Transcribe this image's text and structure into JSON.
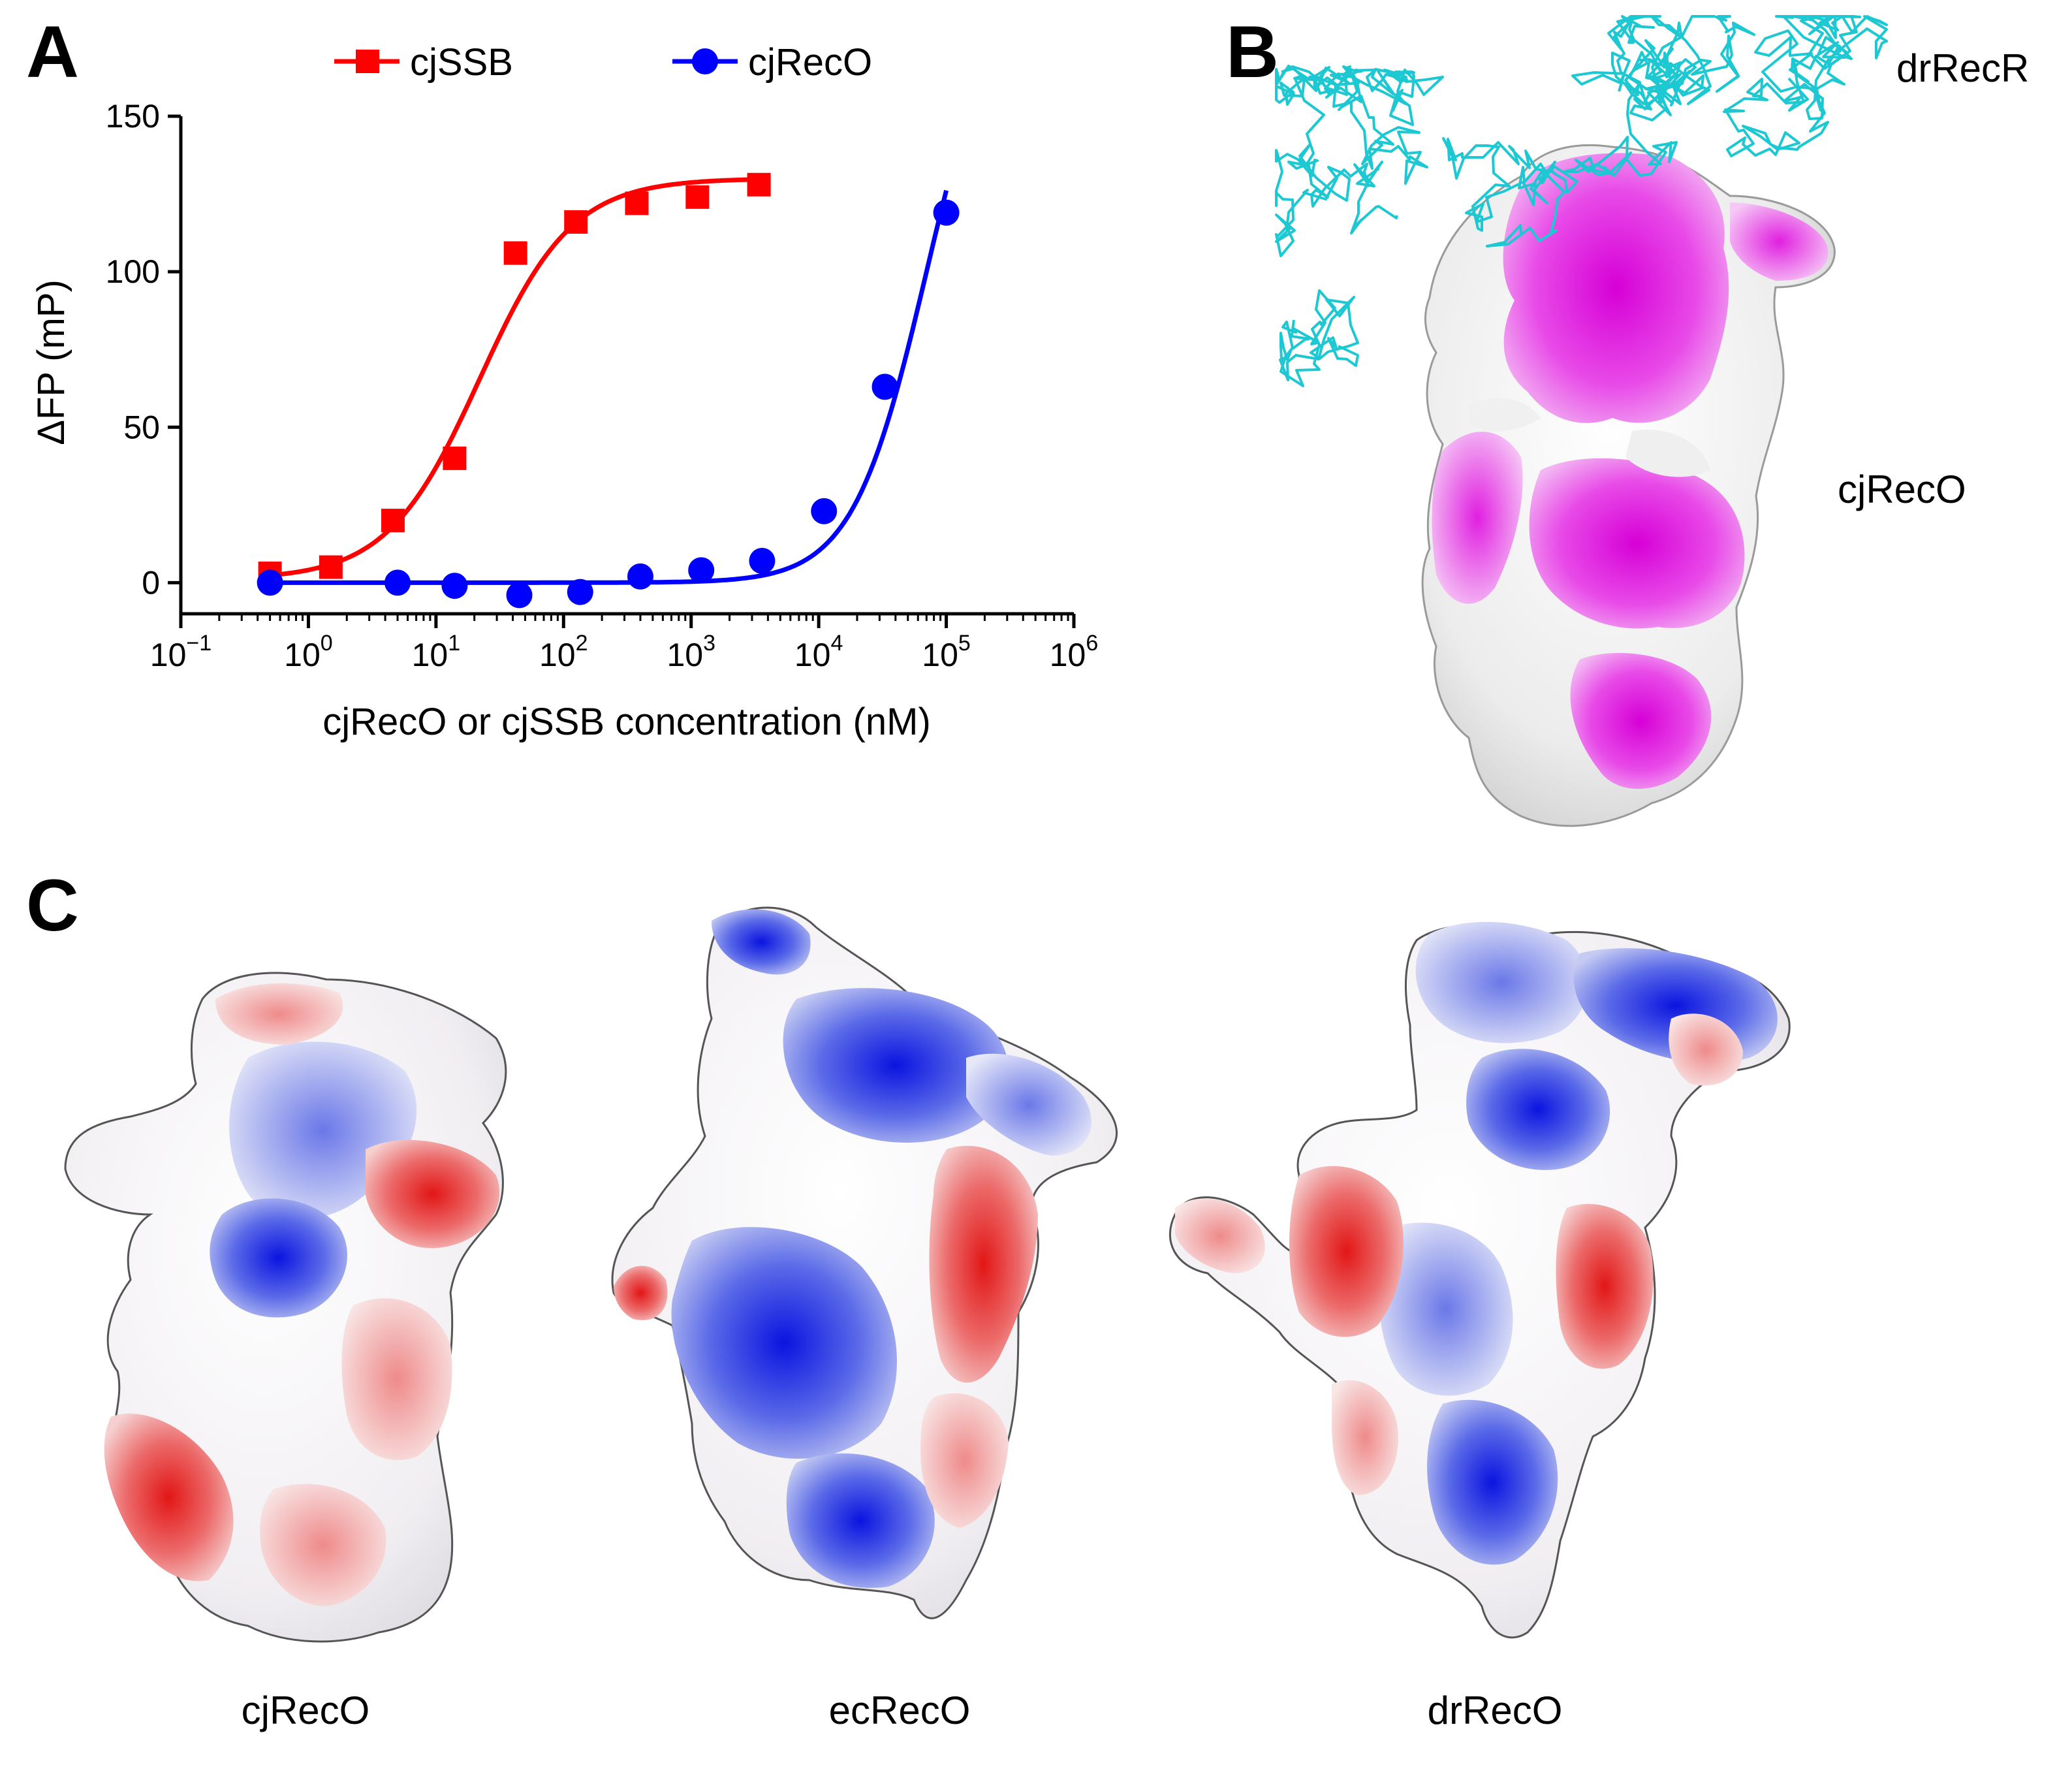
{
  "panels": {
    "a": {
      "letter": "A"
    },
    "b": {
      "letter": "B",
      "label_recr": "drRecR",
      "label_reco": "cjRecO"
    },
    "c": {
      "letter": "C",
      "labels": [
        "cjRecO",
        "ecRecO",
        "drRecO"
      ]
    }
  },
  "chart_data": {
    "type": "scatter",
    "title": "",
    "xlabel": "cjRecO or cjSSB concentration (nM)",
    "ylabel": "ΔFP (mP)",
    "xscale": "log",
    "xlim": [
      0.1,
      1000000
    ],
    "ylim": [
      -10,
      150
    ],
    "x_tick_values": [
      0.1,
      1,
      10,
      100,
      1000,
      10000,
      100000,
      1000000
    ],
    "x_tick_labels": [
      {
        "base": "10",
        "exp": "−1"
      },
      {
        "base": "10",
        "exp": "0"
      },
      {
        "base": "10",
        "exp": "1"
      },
      {
        "base": "10",
        "exp": "2"
      },
      {
        "base": "10",
        "exp": "3"
      },
      {
        "base": "10",
        "exp": "4"
      },
      {
        "base": "10",
        "exp": "5"
      },
      {
        "base": "10",
        "exp": "6"
      }
    ],
    "y_ticks": [
      0,
      50,
      100,
      150
    ],
    "legend": {
      "placement": "top",
      "entries": [
        "cjSSB",
        "cjRecO"
      ]
    },
    "series": [
      {
        "name": "cjSSB",
        "color": "#ff0000",
        "marker": "square",
        "x": [
          0.5,
          1.5,
          4.6,
          14,
          42,
          125,
          375,
          1120,
          3400
        ],
        "y": [
          3,
          5,
          20,
          40,
          106,
          116,
          122,
          124,
          128
        ],
        "fit": {
          "model": "sigmoid",
          "bottom": 1,
          "top": 130,
          "ec50": 22,
          "hill": 1.2
        }
      },
      {
        "name": "cjRecO",
        "color": "#0000ff",
        "marker": "circle",
        "x": [
          0.5,
          5,
          14,
          45,
          135,
          400,
          1200,
          3600,
          11000,
          33000,
          100000
        ],
        "y": null,
        "y_values": [
          0,
          0,
          -1,
          -4,
          -3,
          2,
          4,
          7,
          23,
          63,
          119
        ],
        "fit": {
          "model": "sigmoid",
          "bottom": 0,
          "top": 200,
          "ec50": 70000,
          "hill": 1.5
        }
      }
    ]
  }
}
